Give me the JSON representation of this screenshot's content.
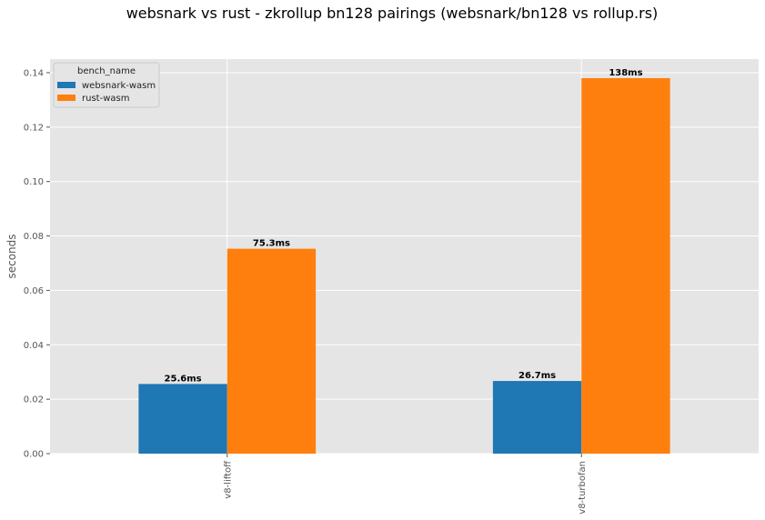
{
  "chart_data": {
    "type": "bar",
    "title": "websnark vs rust - zkrollup bn128 pairings (websnark/bn128 vs rollup.rs)",
    "xlabel": "",
    "ylabel": "seconds",
    "ylim": [
      0,
      0.145
    ],
    "yticks": [
      0.0,
      0.02,
      0.04,
      0.06,
      0.08,
      0.1,
      0.12,
      0.14
    ],
    "ytick_labels": [
      "0.00",
      "0.02",
      "0.04",
      "0.06",
      "0.08",
      "0.10",
      "0.12",
      "0.14"
    ],
    "categories": [
      "v8-liftoff",
      "v8-turbofan"
    ],
    "series": [
      {
        "name": "websnark-wasm",
        "color": "#1f77b4",
        "values": [
          0.0256,
          0.0267
        ],
        "labels": [
          "25.6ms",
          "26.7ms"
        ]
      },
      {
        "name": "rust-wasm",
        "color": "#ff7f0e",
        "values": [
          0.0753,
          0.138
        ],
        "labels": [
          "75.3ms",
          "138ms"
        ]
      }
    ],
    "legend": {
      "title": "bench_name",
      "position": "top-left"
    },
    "grid": true,
    "background": "#e5e5e5"
  }
}
